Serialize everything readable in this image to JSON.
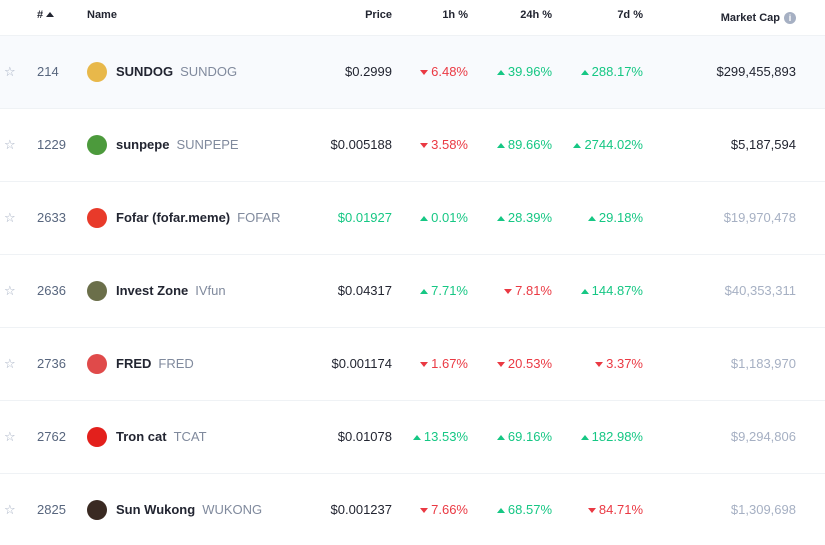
{
  "colors": {
    "up": "#16c784",
    "down": "#ea3943",
    "muted": "#a6b0c3",
    "text": "#222531"
  },
  "header": {
    "rank": "#",
    "name": "Name",
    "price": "Price",
    "h1": "1h %",
    "h24": "24h %",
    "d7": "7d %",
    "market_cap": "Market Cap",
    "info_icon": "info-icon",
    "sort_icon": "sort-up-icon"
  },
  "rows": [
    {
      "rank": "214",
      "name": "SUNDOG",
      "symbol": "SUNDOG",
      "price": "$0.2999",
      "price_color": "default",
      "h1": "6.48%",
      "h1_dir": "down",
      "h24": "39.96%",
      "h24_dir": "up",
      "d7": "288.17%",
      "d7_dir": "up",
      "market_cap": "$299,455,893",
      "mcap_muted": false,
      "logo": "sundog-logo",
      "logo_color": "#e8b84a",
      "highlight": true
    },
    {
      "rank": "1229",
      "name": "sunpepe",
      "symbol": "SUNPEPE",
      "price": "$0.005188",
      "price_color": "default",
      "h1": "3.58%",
      "h1_dir": "down",
      "h24": "89.66%",
      "h24_dir": "up",
      "d7": "2744.02%",
      "d7_dir": "up",
      "market_cap": "$5,187,594",
      "mcap_muted": false,
      "logo": "sunpepe-logo",
      "logo_color": "#4c9a3c",
      "highlight": false
    },
    {
      "rank": "2633",
      "name": "Fofar (fofar.meme)",
      "symbol": "FOFAR",
      "price": "$0.01927",
      "price_color": "up",
      "h1": "0.01%",
      "h1_dir": "up",
      "h24": "28.39%",
      "h24_dir": "up",
      "d7": "29.18%",
      "d7_dir": "up",
      "market_cap": "$19,970,478",
      "mcap_muted": true,
      "logo": "fofar-logo",
      "logo_color": "#e83a2a",
      "highlight": false
    },
    {
      "rank": "2636",
      "name": "Invest Zone",
      "symbol": "IVfun",
      "price": "$0.04317",
      "price_color": "default",
      "h1": "7.71%",
      "h1_dir": "up",
      "h24": "7.81%",
      "h24_dir": "down",
      "d7": "144.87%",
      "d7_dir": "up",
      "market_cap": "$40,353,311",
      "mcap_muted": true,
      "logo": "invest-zone-logo",
      "logo_color": "#6b6f4a",
      "highlight": false
    },
    {
      "rank": "2736",
      "name": "FRED",
      "symbol": "FRED",
      "price": "$0.001174",
      "price_color": "default",
      "h1": "1.67%",
      "h1_dir": "down",
      "h24": "20.53%",
      "h24_dir": "down",
      "d7": "3.37%",
      "d7_dir": "down",
      "market_cap": "$1,183,970",
      "mcap_muted": true,
      "logo": "fred-logo",
      "logo_color": "#e04a4a",
      "highlight": false
    },
    {
      "rank": "2762",
      "name": "Tron cat",
      "symbol": "TCAT",
      "price": "$0.01078",
      "price_color": "default",
      "h1": "13.53%",
      "h1_dir": "up",
      "h24": "69.16%",
      "h24_dir": "up",
      "d7": "182.98%",
      "d7_dir": "up",
      "market_cap": "$9,294,806",
      "mcap_muted": true,
      "logo": "tron-cat-logo",
      "logo_color": "#e3201c",
      "highlight": false
    },
    {
      "rank": "2825",
      "name": "Sun Wukong",
      "symbol": "WUKONG",
      "price": "$0.001237",
      "price_color": "default",
      "h1": "7.66%",
      "h1_dir": "down",
      "h24": "68.57%",
      "h24_dir": "up",
      "d7": "84.71%",
      "d7_dir": "down",
      "market_cap": "$1,309,698",
      "mcap_muted": true,
      "logo": "sun-wukong-logo",
      "logo_color": "#3a2a22",
      "highlight": false
    }
  ]
}
